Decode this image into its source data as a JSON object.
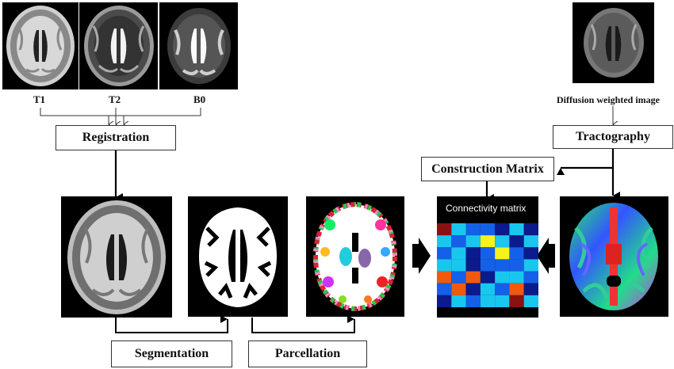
{
  "inputs": {
    "t1_label": "T1",
    "t2_label": "T2",
    "b0_label": "B0",
    "dwi_label": "Diffusion weighted image"
  },
  "steps": {
    "registration": "Registration",
    "tractography": "Tractography",
    "construction_matrix": "Construction Matrix",
    "segmentation": "Segmentation",
    "parcellation": "Parcellation"
  },
  "matrix": {
    "title": "Connectivity matrix",
    "colors": {
      "navy": "#0b1a8c",
      "blue": "#1460e8",
      "cyan": "#19c7ee",
      "orange": "#f05a0f",
      "yellow": "#f8f219",
      "maroon": "#8a1111"
    },
    "cells": [
      [
        "maroon",
        "cyan",
        "blue",
        "blue",
        "navy",
        "cyan",
        "navy"
      ],
      [
        "cyan",
        "blue",
        "cyan",
        "yellow",
        "cyan",
        "navy",
        "cyan"
      ],
      [
        "blue",
        "cyan",
        "navy",
        "blue",
        "yellow",
        "blue",
        "navy"
      ],
      [
        "cyan",
        "cyan",
        "navy",
        "blue",
        "blue",
        "blue",
        "cyan"
      ],
      [
        "orange",
        "blue",
        "orange",
        "navy",
        "cyan",
        "cyan",
        "blue"
      ],
      [
        "blue",
        "orange",
        "navy",
        "cyan",
        "blue",
        "orange",
        "navy"
      ],
      [
        "navy",
        "cyan",
        "blue",
        "cyan",
        "cyan",
        "maroon",
        "cyan"
      ]
    ]
  }
}
